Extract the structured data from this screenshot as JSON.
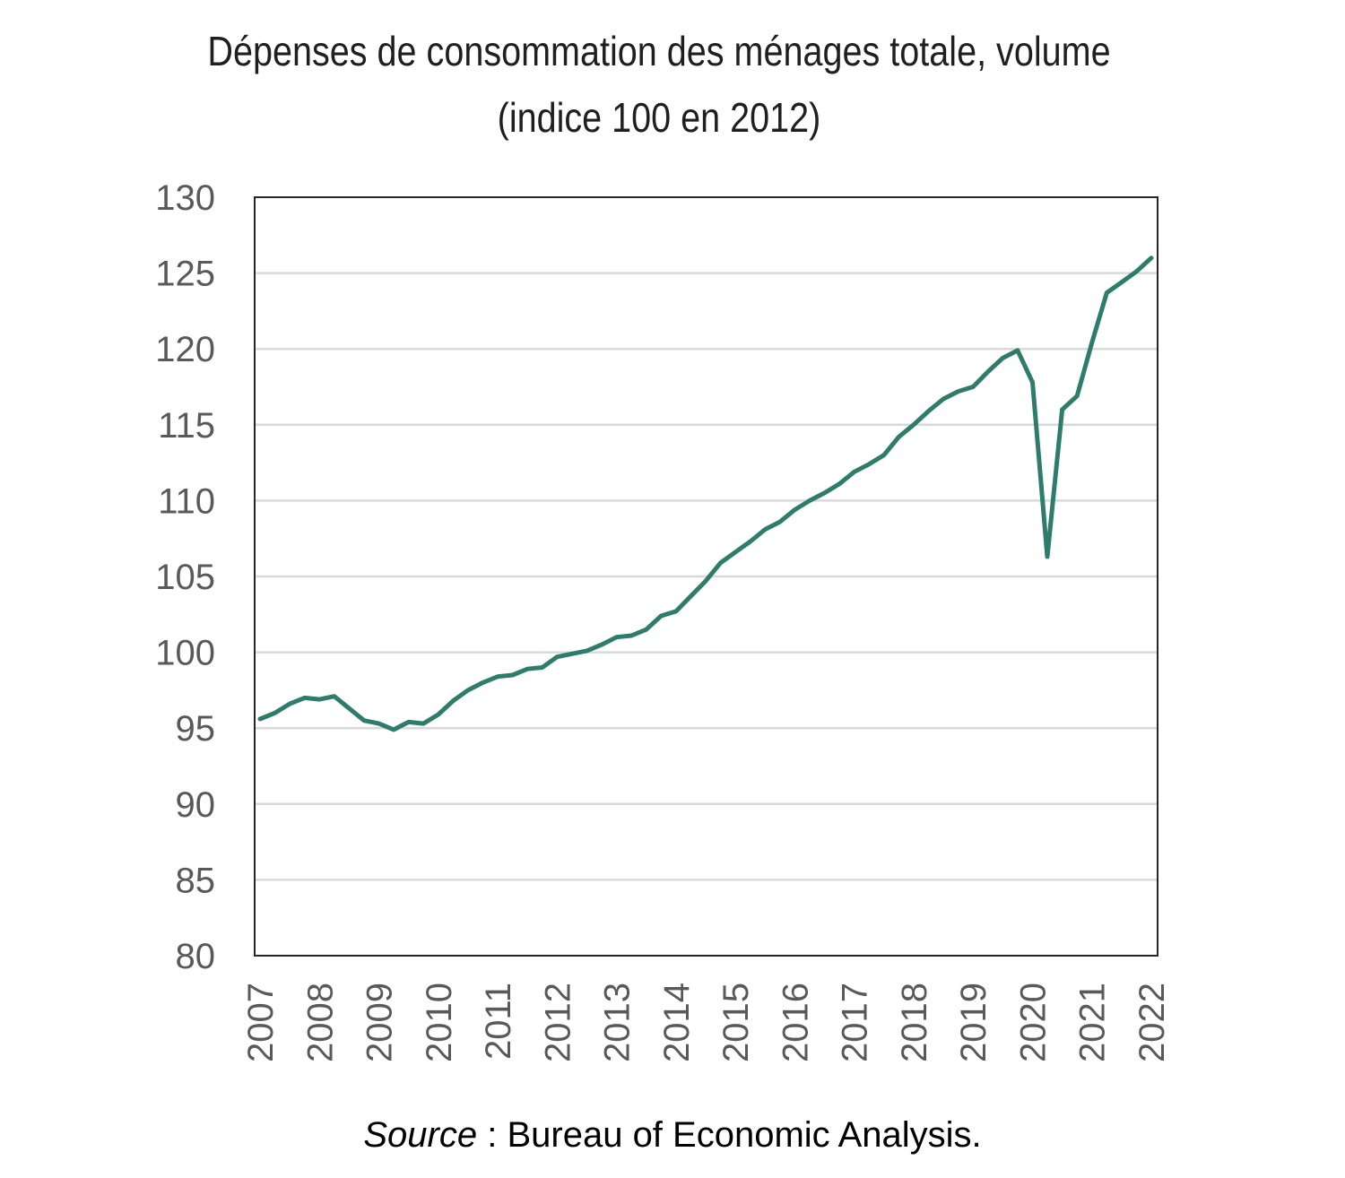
{
  "chart_data": {
    "type": "line",
    "title": "Dépenses de consommation des ménages totale, volume",
    "subtitle": "(indice 100 en 2012)",
    "xlabel": "",
    "ylabel": "",
    "ylim": [
      80,
      130
    ],
    "yticks": [
      80,
      85,
      90,
      95,
      100,
      105,
      110,
      115,
      120,
      125,
      130
    ],
    "xlim": [
      2007,
      2022
    ],
    "xticks": [
      2007,
      2008,
      2009,
      2010,
      2011,
      2012,
      2013,
      2014,
      2015,
      2016,
      2017,
      2018,
      2019,
      2020,
      2021,
      2022
    ],
    "grid": "horizontal",
    "legend": "none",
    "line_color": "#2e7d6b",
    "series": [
      {
        "x": [
          2007.0,
          2007.25,
          2007.5,
          2007.75,
          2008.0,
          2008.25,
          2008.5,
          2008.75,
          2009.0,
          2009.25,
          2009.5,
          2009.75,
          2010.0,
          2010.25,
          2010.5,
          2010.75,
          2011.0,
          2011.25,
          2011.5,
          2011.75,
          2012.0,
          2012.25,
          2012.5,
          2012.75,
          2013.0,
          2013.25,
          2013.5,
          2013.75,
          2014.0,
          2014.25,
          2014.5,
          2014.75,
          2015.0,
          2015.25,
          2015.5,
          2015.75,
          2016.0,
          2016.25,
          2016.5,
          2016.75,
          2017.0,
          2017.25,
          2017.5,
          2017.75,
          2018.0,
          2018.25,
          2018.5,
          2018.75,
          2019.0,
          2019.25,
          2019.5,
          2019.75,
          2020.0,
          2020.25,
          2020.5,
          2020.75,
          2021.0,
          2021.25,
          2021.5,
          2021.75,
          2022.0
        ],
        "values": [
          95.6,
          96.0,
          96.6,
          97.0,
          96.9,
          97.1,
          96.3,
          95.5,
          95.3,
          94.9,
          95.4,
          95.3,
          95.9,
          96.8,
          97.5,
          98.0,
          98.4,
          98.5,
          98.9,
          99.0,
          99.7,
          99.9,
          100.1,
          100.5,
          101.0,
          101.1,
          101.5,
          102.4,
          102.7,
          103.7,
          104.7,
          105.9,
          106.6,
          107.3,
          108.1,
          108.6,
          109.4,
          110.0,
          110.5,
          111.1,
          111.9,
          112.4,
          113.0,
          114.2,
          115.0,
          115.9,
          116.7,
          117.2,
          117.5,
          118.5,
          119.4,
          119.9,
          117.8,
          106.3,
          116.0,
          116.9,
          120.4,
          123.7,
          124.4,
          125.1,
          126.0
        ]
      }
    ]
  },
  "source": {
    "label": "Source",
    "text": " : Bureau of Economic Analysis."
  }
}
